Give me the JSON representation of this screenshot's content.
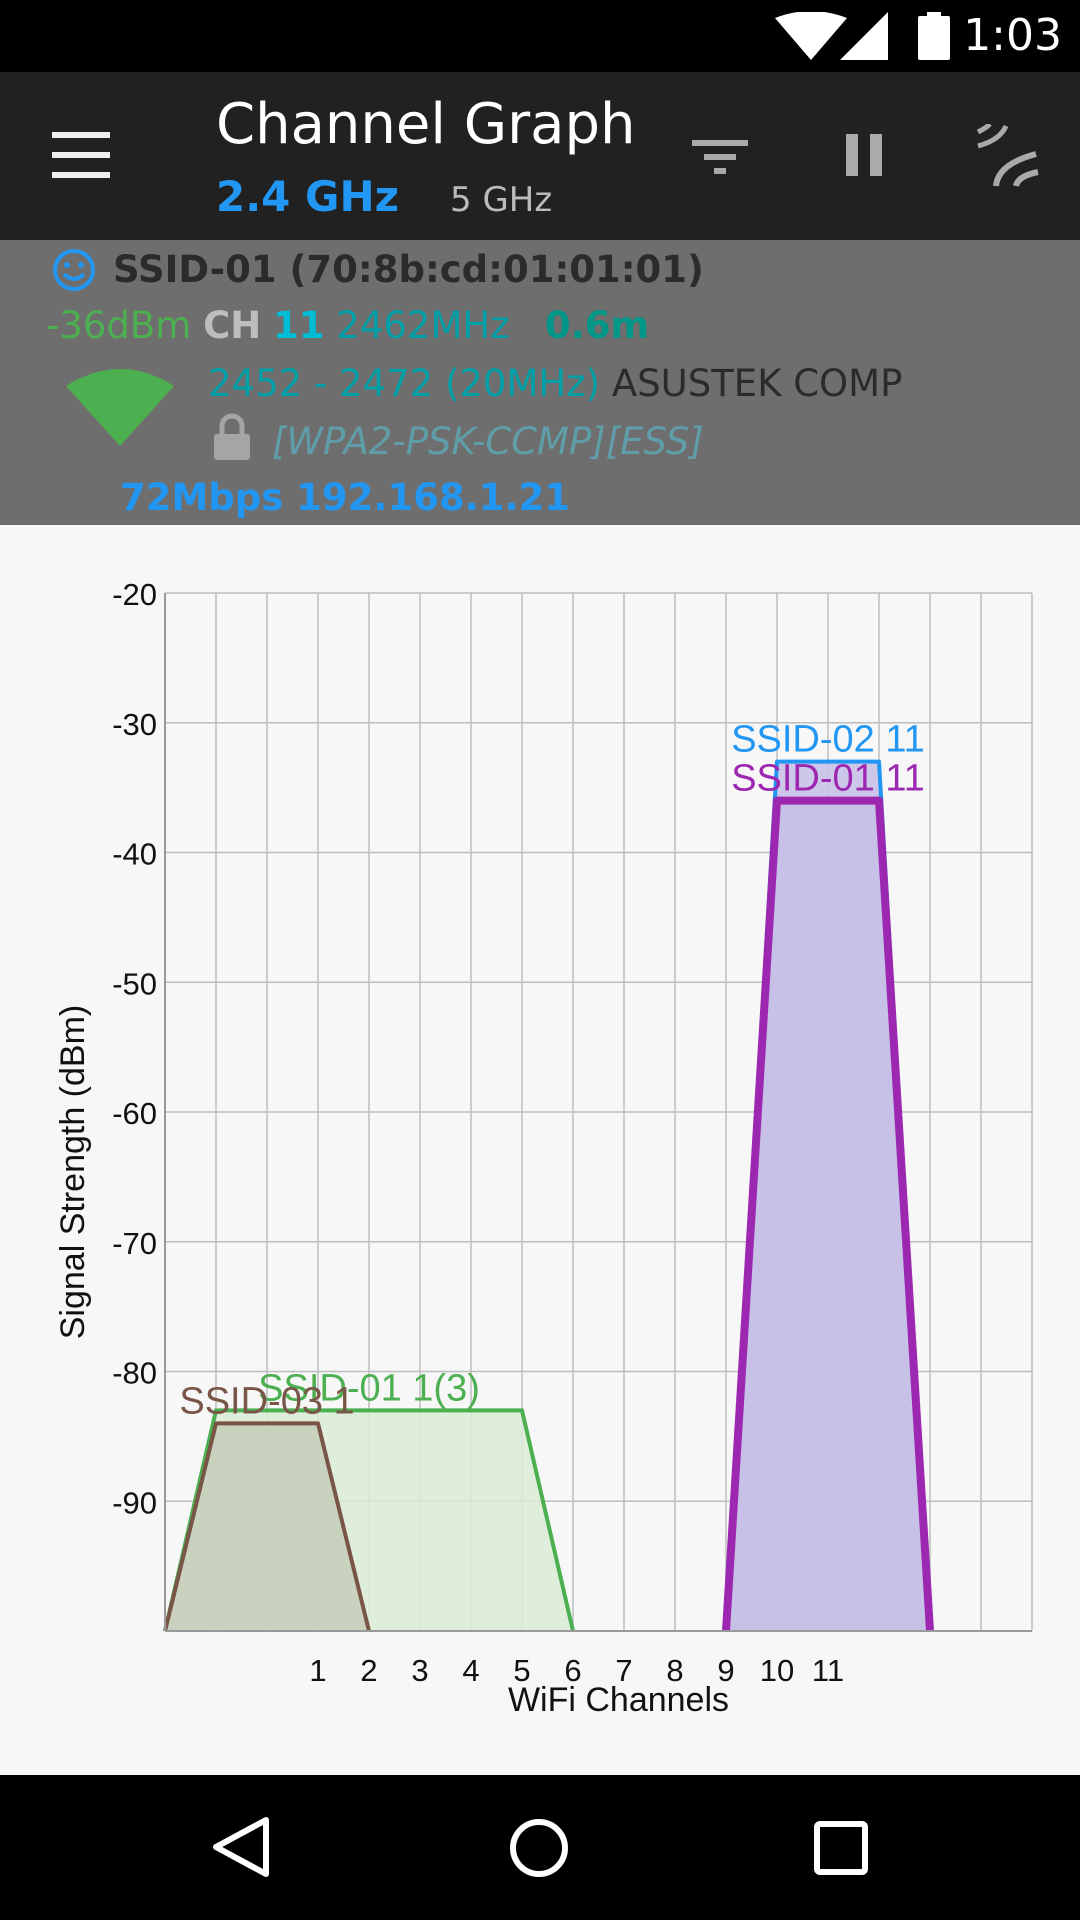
{
  "status_bar": {
    "time": "1:03"
  },
  "app_bar": {
    "title": "Channel Graph",
    "band_selected": "2.4 GHz",
    "band_other": "5 GHz",
    "accent": "#2196f3"
  },
  "connection": {
    "ssid_line": "SSID-01 (70:8b:cd:01:01:01)",
    "level": "-36dBm",
    "ch_label": "CH",
    "channel": "11",
    "frequency": "2462MHz",
    "distance": "0.6m",
    "range": "2452 - 2472 (20MHz)",
    "vendor": "ASUSTEK COMP",
    "security": "[WPA2-PSK-CCMP][ESS]",
    "speed_ip": "72Mbps 192.168.1.21"
  },
  "chart_data": {
    "type": "area",
    "xlabel": "WiFi Channels",
    "ylabel": "Signal Strength (dBm)",
    "ylim": [
      -100,
      -20
    ],
    "yticks": [
      -20,
      -30,
      -40,
      -50,
      -60,
      -70,
      -80,
      -90
    ],
    "xticks": [
      "1",
      "2",
      "3",
      "4",
      "5",
      "6",
      "7",
      "8",
      "9",
      "10",
      "11"
    ],
    "grid": true,
    "series": [
      {
        "label": "SSID-01 1(3)",
        "color": "#4caf50",
        "fill": "#d9ecd6",
        "start": -2,
        "end": 6,
        "level": -83,
        "bold": false
      },
      {
        "label": "SSID-03 1",
        "color": "#795548",
        "fill": "#c6cdb8",
        "start": -2,
        "end": 2,
        "level": -84,
        "bold": false
      },
      {
        "label": "SSID-02 11",
        "color": "#2196f3",
        "fill": "#c5c0e8",
        "start": 9,
        "end": 13,
        "level": -33,
        "bold": false
      },
      {
        "label": "SSID-01 11",
        "color": "#9c27b0",
        "fill": "#c5c0e8",
        "start": 9,
        "end": 13,
        "level": -36,
        "bold": true
      }
    ]
  }
}
